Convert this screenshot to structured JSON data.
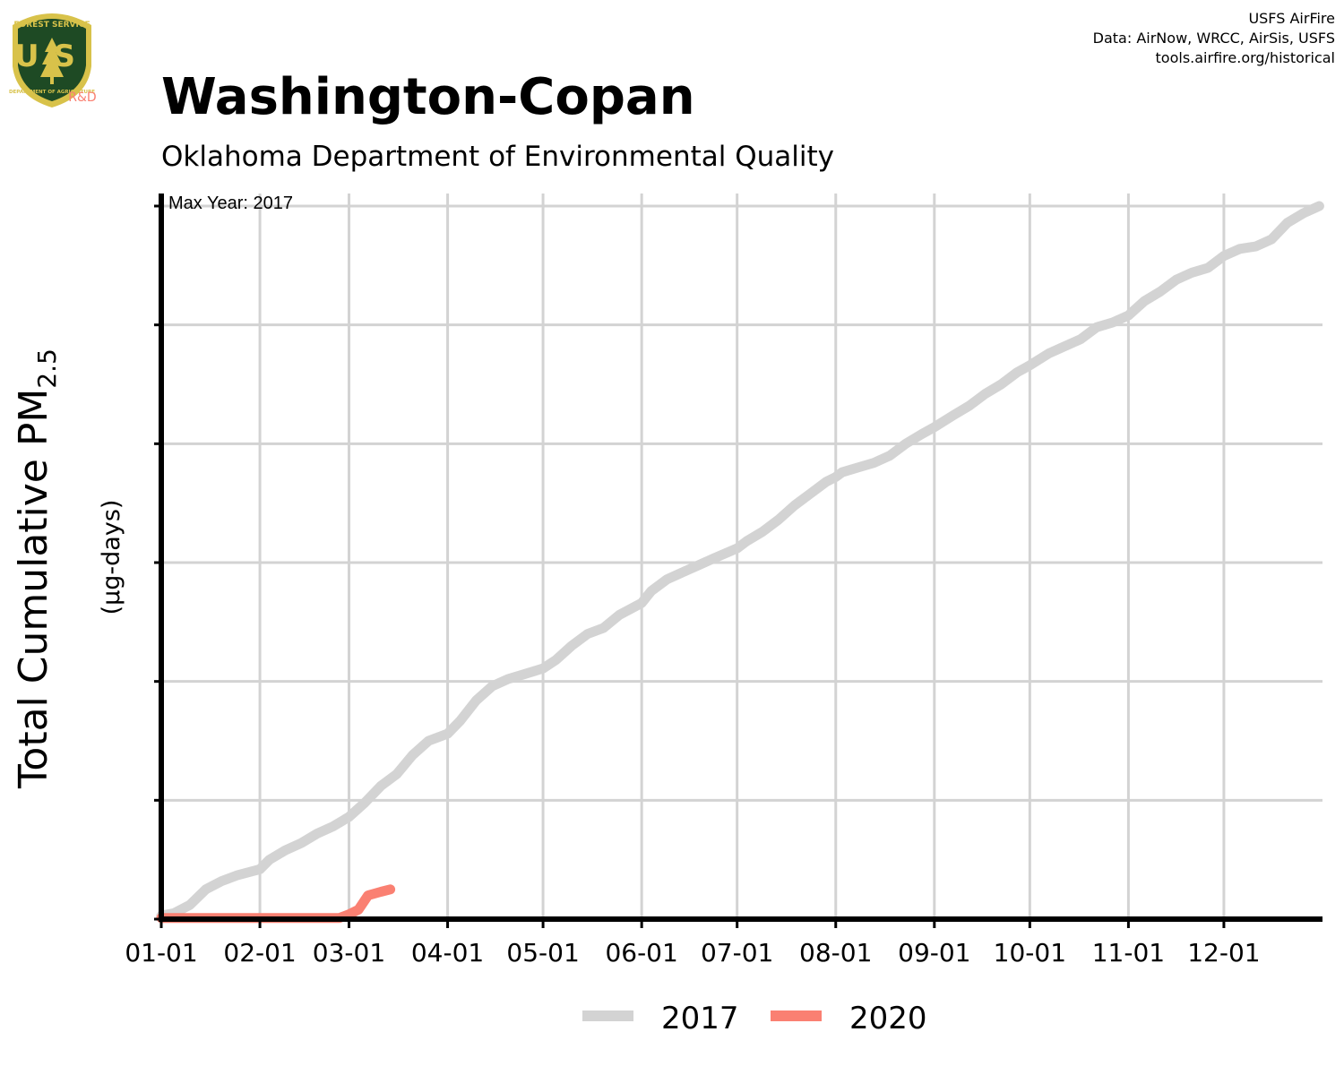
{
  "header": {
    "title": "Washington-Copan",
    "subtitle": "Oklahoma Department of Environmental Quality"
  },
  "credits": {
    "line1": "USFS AirFire",
    "line2": "Data: AirNow, WRCC, AirSis, USFS",
    "line3": "tools.airfire.org/historical"
  },
  "logo": {
    "top_text": "FOREST SERVICE",
    "letters": "US",
    "bottom_text": "DEPARTMENT OF AGRICULTURE",
    "rd_text": "R&D",
    "icon": "usfs-shield-icon"
  },
  "colors": {
    "series_2017": "#d3d3d3",
    "series_2020": "#fa8072",
    "grid": "#d3d3d3",
    "axis": "#000000",
    "logo_green": "#1e4a24",
    "logo_gold": "#d8c24a",
    "rd_text": "#fa8072"
  },
  "chart_data": {
    "type": "line",
    "xlabel": "",
    "ylabel_main": "Total Cumulative PM",
    "ylabel_sub": "2.5",
    "ylabel_units": "(µg-days)",
    "annotation": "Max Year: 2017",
    "x_tick_labels": [
      "01-01",
      "02-01",
      "03-01",
      "04-01",
      "05-01",
      "06-01",
      "07-01",
      "08-01",
      "09-01",
      "10-01",
      "11-01",
      "12-01"
    ],
    "x_tick_days": [
      1,
      32,
      60,
      91,
      121,
      152,
      182,
      213,
      244,
      274,
      305,
      335
    ],
    "xlim": [
      1,
      366
    ],
    "ylim": [
      0,
      6
    ],
    "y_ticks": [
      0,
      1,
      2,
      3,
      4,
      5,
      6
    ],
    "y_tick_labels_shown": false,
    "grid": true,
    "legend": "bottom",
    "series": [
      {
        "name": "2017",
        "points": [
          [
            1,
            0.03
          ],
          [
            5,
            0.05
          ],
          [
            10,
            0.12
          ],
          [
            15,
            0.25
          ],
          [
            20,
            0.32
          ],
          [
            25,
            0.37
          ],
          [
            32,
            0.42
          ],
          [
            35,
            0.5
          ],
          [
            40,
            0.58
          ],
          [
            45,
            0.64
          ],
          [
            50,
            0.72
          ],
          [
            55,
            0.78
          ],
          [
            60,
            0.86
          ],
          [
            65,
            0.98
          ],
          [
            70,
            1.12
          ],
          [
            75,
            1.22
          ],
          [
            80,
            1.38
          ],
          [
            85,
            1.5
          ],
          [
            91,
            1.56
          ],
          [
            95,
            1.67
          ],
          [
            100,
            1.84
          ],
          [
            105,
            1.96
          ],
          [
            110,
            2.02
          ],
          [
            115,
            2.06
          ],
          [
            121,
            2.11
          ],
          [
            125,
            2.18
          ],
          [
            130,
            2.3
          ],
          [
            135,
            2.4
          ],
          [
            140,
            2.45
          ],
          [
            145,
            2.56
          ],
          [
            152,
            2.66
          ],
          [
            155,
            2.76
          ],
          [
            160,
            2.86
          ],
          [
            165,
            2.92
          ],
          [
            170,
            2.98
          ],
          [
            175,
            3.04
          ],
          [
            182,
            3.12
          ],
          [
            185,
            3.18
          ],
          [
            190,
            3.26
          ],
          [
            195,
            3.36
          ],
          [
            200,
            3.48
          ],
          [
            205,
            3.58
          ],
          [
            210,
            3.68
          ],
          [
            213,
            3.72
          ],
          [
            215,
            3.76
          ],
          [
            220,
            3.8
          ],
          [
            225,
            3.84
          ],
          [
            230,
            3.9
          ],
          [
            235,
            4.0
          ],
          [
            240,
            4.08
          ],
          [
            244,
            4.14
          ],
          [
            250,
            4.24
          ],
          [
            255,
            4.32
          ],
          [
            260,
            4.42
          ],
          [
            265,
            4.5
          ],
          [
            270,
            4.6
          ],
          [
            274,
            4.66
          ],
          [
            280,
            4.76
          ],
          [
            285,
            4.82
          ],
          [
            290,
            4.88
          ],
          [
            295,
            4.98
          ],
          [
            300,
            5.02
          ],
          [
            305,
            5.08
          ],
          [
            310,
            5.2
          ],
          [
            315,
            5.28
          ],
          [
            320,
            5.38
          ],
          [
            325,
            5.44
          ],
          [
            330,
            5.48
          ],
          [
            335,
            5.58
          ],
          [
            340,
            5.64
          ],
          [
            345,
            5.66
          ],
          [
            350,
            5.72
          ],
          [
            355,
            5.86
          ],
          [
            360,
            5.94
          ],
          [
            365,
            6.0
          ]
        ]
      },
      {
        "name": "2020",
        "points": [
          [
            1,
            0.01
          ],
          [
            20,
            0.01
          ],
          [
            40,
            0.01
          ],
          [
            50,
            0.01
          ],
          [
            57,
            0.01
          ],
          [
            60,
            0.04
          ],
          [
            63,
            0.08
          ],
          [
            66,
            0.2
          ],
          [
            70,
            0.23
          ],
          [
            73,
            0.25
          ]
        ]
      }
    ]
  }
}
